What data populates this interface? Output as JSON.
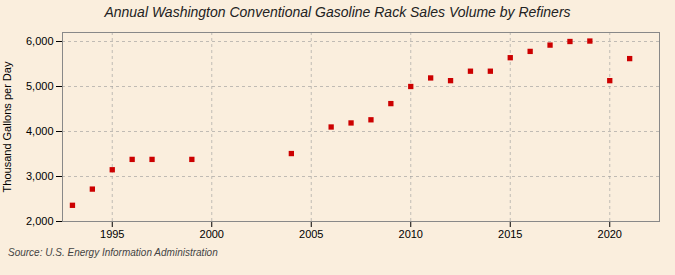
{
  "chart_data": {
    "type": "scatter",
    "title": "Annual Washington Conventional Gasoline Rack Sales Volume by Refiners",
    "ylabel": "Thousand Gallons per Day",
    "annotations": [
      "Source: U.S. Energy Information Administration"
    ],
    "x": [
      1993,
      1994,
      1995,
      1996,
      1997,
      1999,
      2004,
      2006,
      2007,
      2008,
      2009,
      2010,
      2011,
      2012,
      2013,
      2014,
      2015,
      2016,
      2017,
      2018,
      2019,
      2020,
      2021
    ],
    "values": [
      2360,
      2720,
      3150,
      3380,
      3380,
      3380,
      3510,
      4100,
      4190,
      4260,
      4620,
      5000,
      5190,
      5130,
      5340,
      5340,
      5640,
      5780,
      5920,
      6000,
      6010,
      5130,
      5620
    ],
    "color": "#cc0000",
    "marker": "square",
    "xlim": [
      1992.5,
      2022.5
    ],
    "xticks": [
      1995,
      2000,
      2005,
      2010,
      2015,
      2020
    ],
    "ylim": [
      2000,
      6200
    ],
    "yticks": [
      {
        "value": 2000,
        "label": "2,000"
      },
      {
        "value": 3000,
        "label": "3,000"
      },
      {
        "value": 4000,
        "label": "4,000"
      },
      {
        "value": 5000,
        "label": "5,000"
      },
      {
        "value": 6000,
        "label": "6,000"
      }
    ],
    "grid": true
  }
}
